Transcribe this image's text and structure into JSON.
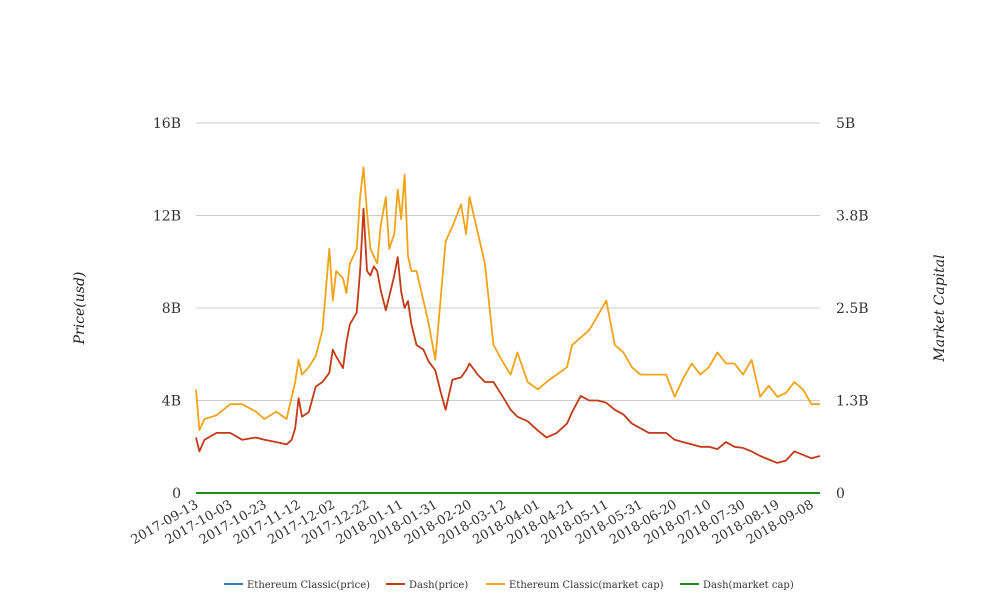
{
  "chart_data": {
    "type": "line",
    "ylabel_left": "Price(usd)",
    "ylabel_right": "Market Capital",
    "y_left_ticks": [
      "0",
      "4B",
      "8B",
      "12B",
      "16B"
    ],
    "y_right_ticks": [
      "0",
      "1.3B",
      "2.5B",
      "3.8B",
      "5B"
    ],
    "ylim_left": [
      0,
      16
    ],
    "ylim_right": [
      0,
      5
    ],
    "x_tick_labels": [
      "2017-09-13",
      "2017-10-03",
      "2017-10-23",
      "2017-11-12",
      "2017-12-02",
      "2017-12-22",
      "2018-01-11",
      "2018-01-31",
      "2018-02-20",
      "2018-03-12",
      "2018-04-01",
      "2018-04-21",
      "2018-05-11",
      "2018-05-31",
      "2018-06-20",
      "2018-07-10",
      "2018-07-30",
      "2018-08-19",
      "2018-09-08"
    ],
    "x_range": [
      "2017-09-13",
      "2018-09-13"
    ],
    "legend": {
      "placement": "bottom",
      "items": [
        {
          "name": "Ethereum Classic(price)",
          "color": "#4472c4"
        },
        {
          "name": "Dash(price)",
          "color": "#c23a17"
        },
        {
          "name": "Ethereum Classic(market cap)",
          "color": "#f2a318"
        },
        {
          "name": "Dash(market cap)",
          "color": "#1e8a1e"
        }
      ]
    },
    "series": [
      {
        "name": "Ethereum Classic(price)",
        "axis": "left",
        "color": "#4472c4",
        "x": [
          "2017-09-13",
          "2018-09-13"
        ],
        "y": [
          0,
          0
        ]
      },
      {
        "name": "Dash(price)",
        "axis": "left",
        "color": "#c23a17",
        "x": [
          "2017-09-13",
          "2017-09-15",
          "2017-09-18",
          "2017-09-25",
          "2017-10-03",
          "2017-10-10",
          "2017-10-18",
          "2017-10-23",
          "2017-10-30",
          "2017-11-05",
          "2017-11-08",
          "2017-11-10",
          "2017-11-12",
          "2017-11-14",
          "2017-11-18",
          "2017-11-22",
          "2017-11-26",
          "2017-11-30",
          "2017-12-02",
          "2017-12-04",
          "2017-12-08",
          "2017-12-10",
          "2017-12-12",
          "2017-12-16",
          "2017-12-18",
          "2017-12-20",
          "2017-12-22",
          "2017-12-24",
          "2017-12-26",
          "2017-12-28",
          "2017-12-30",
          "2018-01-02",
          "2018-01-04",
          "2018-01-07",
          "2018-01-09",
          "2018-01-11",
          "2018-01-13",
          "2018-01-15",
          "2018-01-17",
          "2018-01-20",
          "2018-01-24",
          "2018-01-27",
          "2018-01-31",
          "2018-02-03",
          "2018-02-06",
          "2018-02-10",
          "2018-02-15",
          "2018-02-18",
          "2018-02-20",
          "2018-02-25",
          "2018-03-01",
          "2018-03-06",
          "2018-03-12",
          "2018-03-16",
          "2018-03-20",
          "2018-03-26",
          "2018-04-01",
          "2018-04-06",
          "2018-04-12",
          "2018-04-18",
          "2018-04-21",
          "2018-04-26",
          "2018-05-01",
          "2018-05-06",
          "2018-05-11",
          "2018-05-16",
          "2018-05-21",
          "2018-05-26",
          "2018-05-31",
          "2018-06-05",
          "2018-06-10",
          "2018-06-15",
          "2018-06-20",
          "2018-06-25",
          "2018-06-30",
          "2018-07-05",
          "2018-07-10",
          "2018-07-15",
          "2018-07-20",
          "2018-07-25",
          "2018-07-30",
          "2018-08-04",
          "2018-08-09",
          "2018-08-14",
          "2018-08-19",
          "2018-08-24",
          "2018-08-29",
          "2018-09-03",
          "2018-09-08",
          "2018-09-13"
        ],
        "y": [
          2.4,
          1.8,
          2.3,
          2.6,
          2.6,
          2.3,
          2.4,
          2.3,
          2.2,
          2.1,
          2.3,
          2.8,
          4.1,
          3.3,
          3.5,
          4.6,
          4.8,
          5.2,
          6.2,
          5.9,
          5.4,
          6.5,
          7.3,
          7.8,
          9.6,
          12.3,
          9.6,
          9.4,
          9.8,
          9.6,
          8.8,
          7.9,
          8.5,
          9.4,
          10.2,
          8.7,
          8.0,
          8.3,
          7.3,
          6.4,
          6.2,
          5.7,
          5.3,
          4.4,
          3.6,
          4.9,
          5.0,
          5.3,
          5.6,
          5.1,
          4.8,
          4.8,
          4.1,
          3.6,
          3.3,
          3.1,
          2.7,
          2.4,
          2.6,
          3.0,
          3.5,
          4.2,
          4.0,
          4.0,
          3.9,
          3.6,
          3.4,
          3.0,
          2.8,
          2.6,
          2.6,
          2.6,
          2.3,
          2.2,
          2.1,
          2.0,
          2.0,
          1.9,
          2.2,
          2.0,
          1.95,
          1.8,
          1.6,
          1.45,
          1.3,
          1.4,
          1.8,
          1.65,
          1.5,
          1.6
        ]
      },
      {
        "name": "Ethereum Classic(market cap)",
        "axis": "right",
        "color": "#f2a318",
        "x": [
          "2017-09-13",
          "2017-09-15",
          "2017-09-18",
          "2017-09-25",
          "2017-10-03",
          "2017-10-10",
          "2017-10-18",
          "2017-10-23",
          "2017-10-30",
          "2017-11-05",
          "2017-11-08",
          "2017-11-10",
          "2017-11-12",
          "2017-11-14",
          "2017-11-18",
          "2017-11-22",
          "2017-11-26",
          "2017-11-30",
          "2017-12-02",
          "2017-12-04",
          "2017-12-08",
          "2017-12-10",
          "2017-12-12",
          "2017-12-16",
          "2017-12-18",
          "2017-12-20",
          "2017-12-22",
          "2017-12-24",
          "2017-12-26",
          "2017-12-28",
          "2017-12-30",
          "2018-01-02",
          "2018-01-04",
          "2018-01-07",
          "2018-01-09",
          "2018-01-11",
          "2018-01-13",
          "2018-01-15",
          "2018-01-17",
          "2018-01-20",
          "2018-01-24",
          "2018-01-27",
          "2018-01-31",
          "2018-02-03",
          "2018-02-06",
          "2018-02-10",
          "2018-02-15",
          "2018-02-18",
          "2018-02-20",
          "2018-02-25",
          "2018-03-01",
          "2018-03-06",
          "2018-03-12",
          "2018-03-16",
          "2018-03-20",
          "2018-03-26",
          "2018-04-01",
          "2018-04-06",
          "2018-04-12",
          "2018-04-18",
          "2018-04-21",
          "2018-04-26",
          "2018-05-01",
          "2018-05-06",
          "2018-05-11",
          "2018-05-16",
          "2018-05-21",
          "2018-05-26",
          "2018-05-31",
          "2018-06-05",
          "2018-06-10",
          "2018-06-15",
          "2018-06-20",
          "2018-06-25",
          "2018-06-30",
          "2018-07-05",
          "2018-07-10",
          "2018-07-15",
          "2018-07-20",
          "2018-07-25",
          "2018-07-30",
          "2018-08-04",
          "2018-08-09",
          "2018-08-14",
          "2018-08-19",
          "2018-08-24",
          "2018-08-29",
          "2018-09-03",
          "2018-09-08",
          "2018-09-13"
        ],
        "y": [
          1.4,
          0.85,
          1.0,
          1.05,
          1.2,
          1.2,
          1.1,
          1.0,
          1.1,
          1.0,
          1.3,
          1.5,
          1.8,
          1.6,
          1.7,
          1.85,
          2.2,
          3.3,
          2.6,
          3.0,
          2.9,
          2.7,
          3.1,
          3.3,
          4.0,
          4.4,
          3.8,
          3.3,
          3.2,
          3.1,
          3.6,
          4.0,
          3.3,
          3.5,
          4.1,
          3.7,
          4.3,
          3.2,
          3.0,
          3.0,
          2.6,
          2.3,
          1.8,
          2.6,
          3.4,
          3.6,
          3.9,
          3.5,
          4.0,
          3.5,
          3.1,
          2.0,
          1.75,
          1.6,
          1.9,
          1.5,
          1.4,
          1.5,
          1.6,
          1.7,
          2.0,
          2.1,
          2.2,
          2.4,
          2.6,
          2.0,
          1.9,
          1.7,
          1.6,
          1.6,
          1.6,
          1.6,
          1.3,
          1.55,
          1.75,
          1.6,
          1.7,
          1.9,
          1.75,
          1.75,
          1.6,
          1.8,
          1.3,
          1.45,
          1.3,
          1.35,
          1.5,
          1.4,
          1.2,
          1.2
        ]
      },
      {
        "name": "Dash(market cap)",
        "axis": "right",
        "color": "#1e8a1e",
        "x": [
          "2017-09-13",
          "2018-09-13"
        ],
        "y": [
          0,
          0
        ]
      }
    ]
  }
}
